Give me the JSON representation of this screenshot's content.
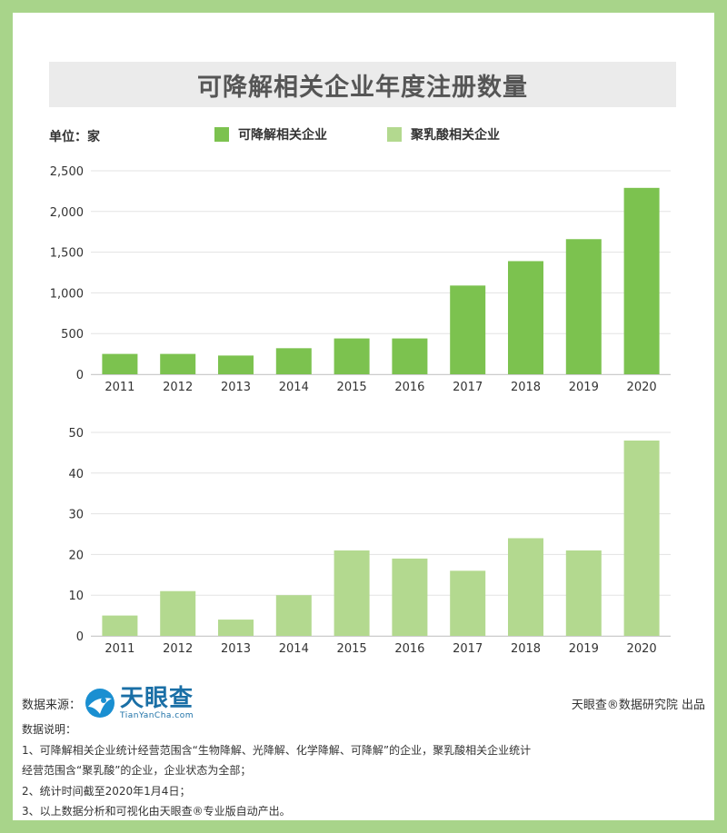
{
  "title": "可降解相关企业年度注册数量",
  "unit_label": "单位：家",
  "colors": {
    "series1": "#7cc24f",
    "series2": "#b3d98f",
    "frame": "#a8d48a"
  },
  "chart_data": [
    {
      "type": "bar",
      "title": "",
      "categories": [
        "2011",
        "2012",
        "2013",
        "2014",
        "2015",
        "2016",
        "2017",
        "2018",
        "2019",
        "2020"
      ],
      "series": [
        {
          "name": "可降解相关企业",
          "values": [
            250,
            250,
            230,
            320,
            440,
            440,
            1090,
            1390,
            1660,
            2290
          ]
        }
      ],
      "yticks": [
        "0",
        "500",
        "1,000",
        "1,500",
        "2,000",
        "2,500"
      ],
      "ylim": [
        0,
        2500
      ],
      "grid": true,
      "legend": "top"
    },
    {
      "type": "bar",
      "title": "",
      "categories": [
        "2011",
        "2012",
        "2013",
        "2014",
        "2015",
        "2016",
        "2017",
        "2018",
        "2019",
        "2020"
      ],
      "series": [
        {
          "name": "聚乳酸相关企业",
          "values": [
            5,
            11,
            4,
            10,
            21,
            19,
            16,
            24,
            21,
            48
          ]
        }
      ],
      "yticks": [
        "0",
        "10",
        "20",
        "30",
        "40",
        "50"
      ],
      "ylim": [
        0,
        50
      ],
      "grid": true,
      "legend": "top"
    }
  ],
  "source": {
    "label": "数据来源：",
    "logo_cn": "天眼查",
    "logo_en": "TianYanCha.com",
    "logo_icon": "tianyancha-logo-icon"
  },
  "publisher": "天眼查®数据研究院 出品",
  "notes": {
    "heading": "数据说明：",
    "lines": [
      "1、可降解相关企业统计经营范围含“生物降解、光降解、化学降解、可降解”的企业，聚乳酸相关企业统计",
      "经营范围含“聚乳酸”的企业，企业状态为全部；",
      "2、统计时间截至2020年1月4日；",
      "3、以上数据分析和可视化由天眼查®专业版自动产出。"
    ]
  }
}
